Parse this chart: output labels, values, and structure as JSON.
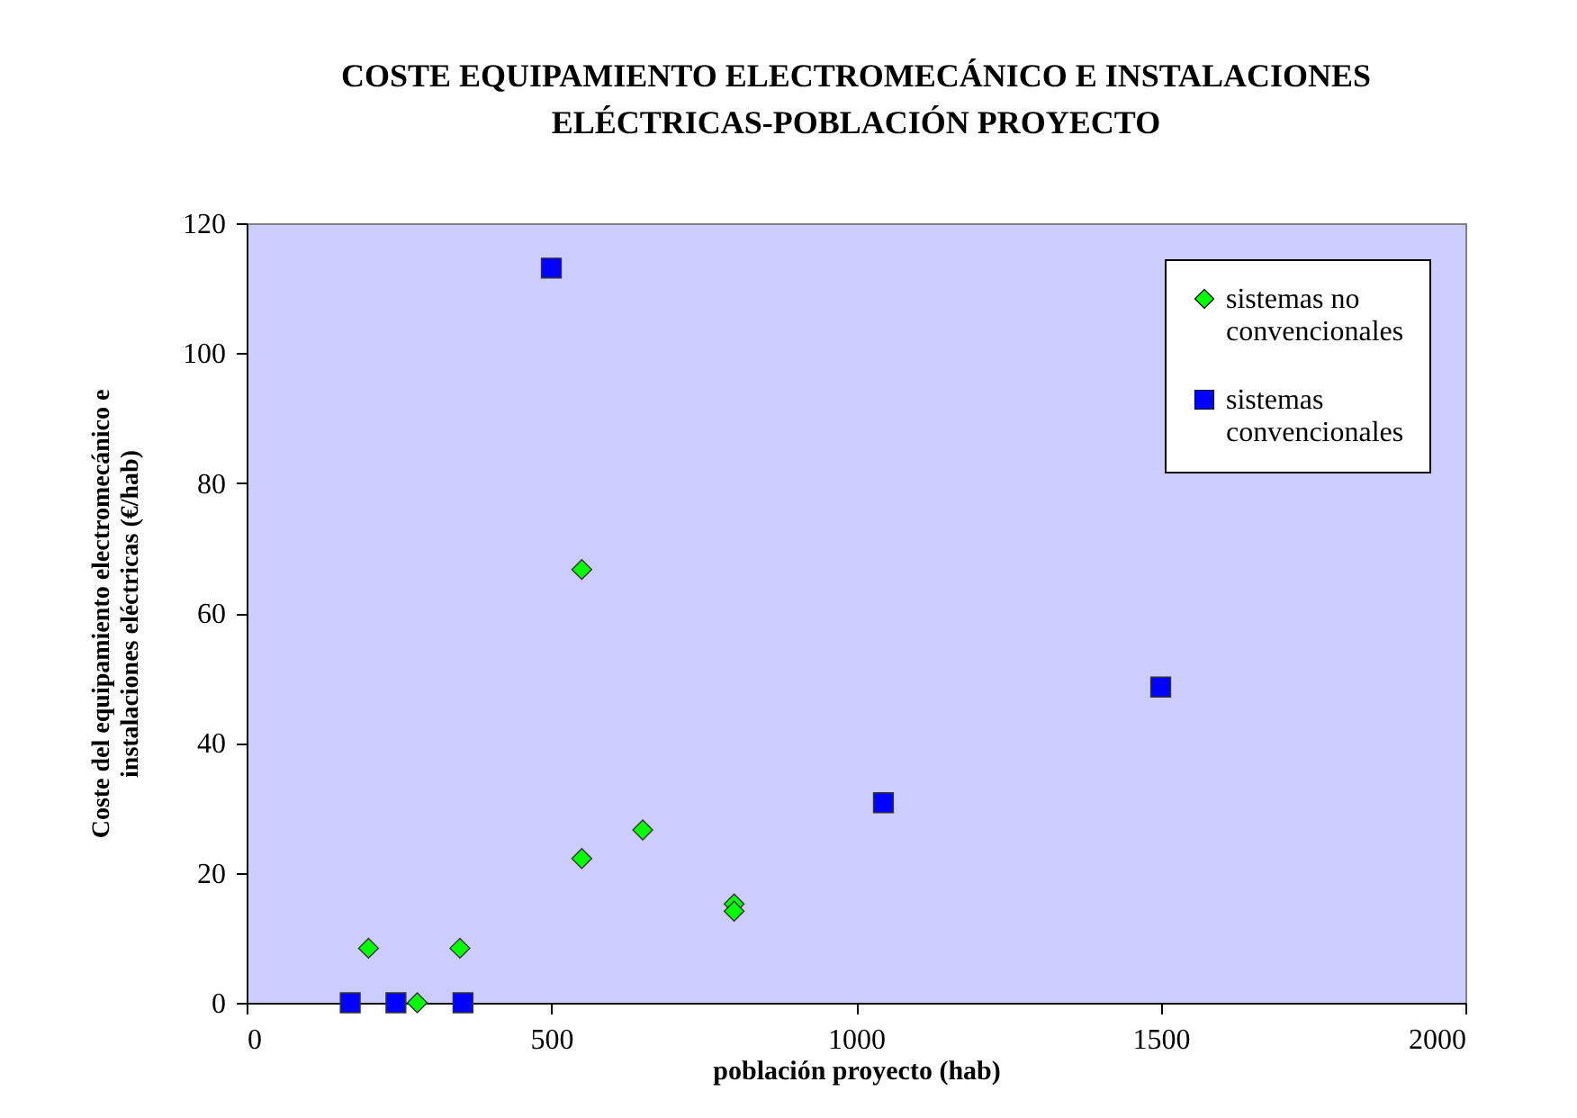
{
  "chart_data": {
    "type": "scatter",
    "title": "COSTE EQUIPAMIENTO ELECTROMECÁNICO E INSTALACIONES ELÉCTRICAS-POBLACIÓN PROYECTO",
    "xlabel": "población proyecto (hab)",
    "ylabel": "Coste del equipamiento electromecánico e instalaciones eléctricas (€/hab)",
    "xlim": [
      0,
      2000
    ],
    "xticks": [
      0,
      500,
      1000,
      1500,
      2000
    ],
    "ylim": [
      0,
      120
    ],
    "yticks": [
      0,
      20,
      40,
      60,
      80,
      100,
      120
    ],
    "grid": false,
    "legend": "top right",
    "series": [
      {
        "name": "sistemas no convencionales",
        "color": "#00ff00",
        "marker": "diamond",
        "x": [
          200,
          280,
          350,
          550,
          550,
          650,
          800,
          800
        ],
        "values": [
          8.4,
          0,
          8.4,
          22.2,
          66.7,
          26.6,
          15.2,
          14.1
        ]
      },
      {
        "name": "sistemas convencionales",
        "color": "#0000ff",
        "marker": "square",
        "x": [
          170,
          245,
          355,
          500,
          1045,
          1500
        ],
        "values": [
          0,
          0,
          0,
          113.1,
          30.8,
          48.6
        ]
      }
    ]
  }
}
